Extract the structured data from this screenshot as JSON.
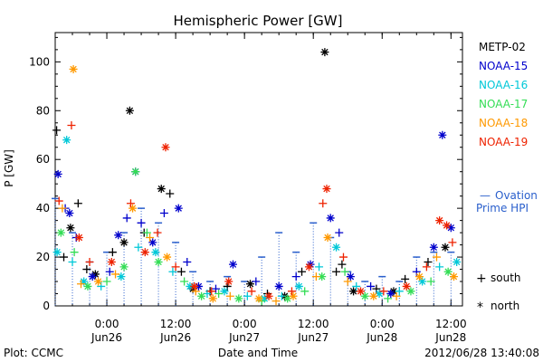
{
  "chart_data": {
    "type": "scatter",
    "title": "Hemispheric Power [GW]",
    "ylabel": "P [GW]",
    "xlabel": "Date and Time",
    "ylim": [
      0,
      112
    ],
    "yticks": [
      0,
      20,
      40,
      60,
      80,
      100
    ],
    "xlim": [
      "2012-06-25T15:00",
      "2012-06-28T14:00"
    ],
    "xticks": [
      {
        "time": "2012-06-26T00:00",
        "line1": "0:00",
        "line2": "Jun26"
      },
      {
        "time": "2012-06-26T12:00",
        "line1": "12:00",
        "line2": "Jun26"
      },
      {
        "time": "2012-06-27T00:00",
        "line1": "0:00",
        "line2": "Jun27"
      },
      {
        "time": "2012-06-27T12:00",
        "line1": "12:00",
        "line2": "Jun27"
      },
      {
        "time": "2012-06-28T00:00",
        "line1": "0:00",
        "line2": "Jun28"
      },
      {
        "time": "2012-06-28T12:00",
        "line1": "12:00",
        "line2": "Jun28"
      }
    ],
    "grid": false,
    "legend_position": "right",
    "series": [
      {
        "name": "METP-02",
        "color": "#000000",
        "points": [
          [
            "2012-06-25T15:15",
            72,
            "south"
          ],
          [
            "2012-06-25T16:30",
            20,
            "south"
          ],
          [
            "2012-06-25T17:40",
            32,
            "north"
          ],
          [
            "2012-06-25T19:00",
            42,
            "south"
          ],
          [
            "2012-06-25T20:30",
            15,
            "south"
          ],
          [
            "2012-06-25T22:00",
            13,
            "north"
          ],
          [
            "2012-06-26T01:00",
            22,
            "south"
          ],
          [
            "2012-06-26T03:00",
            26,
            "north"
          ],
          [
            "2012-06-26T04:00",
            80,
            "north"
          ],
          [
            "2012-06-26T06:30",
            30,
            "south"
          ],
          [
            "2012-06-26T09:30",
            48,
            "north"
          ],
          [
            "2012-06-26T11:00",
            46,
            "south"
          ],
          [
            "2012-06-26T13:00",
            14,
            "south"
          ],
          [
            "2012-06-26T15:00",
            7,
            "north"
          ],
          [
            "2012-06-26T18:00",
            6,
            "south"
          ],
          [
            "2012-06-26T21:00",
            8,
            "south"
          ],
          [
            "2012-06-27T01:00",
            9,
            "north"
          ],
          [
            "2012-06-27T04:00",
            5,
            "south"
          ],
          [
            "2012-06-27T07:00",
            4,
            "north"
          ],
          [
            "2012-06-27T10:00",
            14,
            "south"
          ],
          [
            "2012-06-27T14:00",
            104,
            "north"
          ],
          [
            "2012-06-27T16:00",
            14,
            "south"
          ],
          [
            "2012-06-27T17:00",
            17,
            "south"
          ],
          [
            "2012-06-27T19:00",
            6,
            "north"
          ],
          [
            "2012-06-27T23:00",
            7,
            "south"
          ],
          [
            "2012-06-28T02:00",
            6,
            "north"
          ],
          [
            "2012-06-28T04:00",
            11,
            "south"
          ],
          [
            "2012-06-28T08:00",
            18,
            "south"
          ],
          [
            "2012-06-28T11:00",
            24,
            "north"
          ]
        ]
      },
      {
        "name": "NOAA-15",
        "color": "#0000cc",
        "points": [
          [
            "2012-06-25T15:30",
            54,
            "north"
          ],
          [
            "2012-06-25T16:45",
            40,
            "south"
          ],
          [
            "2012-06-25T17:30",
            38,
            "north"
          ],
          [
            "2012-06-25T18:40",
            28,
            "south"
          ],
          [
            "2012-06-25T21:30",
            12,
            "north"
          ],
          [
            "2012-06-26T00:30",
            14,
            "south"
          ],
          [
            "2012-06-26T02:00",
            29,
            "north"
          ],
          [
            "2012-06-26T03:30",
            36,
            "south"
          ],
          [
            "2012-06-26T05:00",
            55,
            "north"
          ],
          [
            "2012-06-26T06:00",
            34,
            "south"
          ],
          [
            "2012-06-26T08:00",
            26,
            "north"
          ],
          [
            "2012-06-26T10:00",
            38,
            "south"
          ],
          [
            "2012-06-26T12:30",
            40,
            "north"
          ],
          [
            "2012-06-26T14:00",
            18,
            "south"
          ],
          [
            "2012-06-26T16:00",
            8,
            "north"
          ],
          [
            "2012-06-26T19:00",
            7,
            "south"
          ],
          [
            "2012-06-26T22:00",
            17,
            "north"
          ],
          [
            "2012-06-27T02:00",
            10,
            "south"
          ],
          [
            "2012-06-27T06:00",
            8,
            "north"
          ],
          [
            "2012-06-27T09:00",
            12,
            "south"
          ],
          [
            "2012-06-27T11:30",
            17,
            "north"
          ],
          [
            "2012-06-27T15:00",
            36,
            "north"
          ],
          [
            "2012-06-27T16:30",
            30,
            "south"
          ],
          [
            "2012-06-27T18:30",
            12,
            "north"
          ],
          [
            "2012-06-27T22:00",
            8,
            "south"
          ],
          [
            "2012-06-28T01:30",
            5,
            "north"
          ],
          [
            "2012-06-28T06:00",
            14,
            "south"
          ],
          [
            "2012-06-28T09:00",
            24,
            "north"
          ],
          [
            "2012-06-28T10:30",
            70,
            "north"
          ],
          [
            "2012-06-28T12:00",
            32,
            "north"
          ]
        ]
      },
      {
        "name": "NOAA-16",
        "color": "#00c8d8",
        "points": [
          [
            "2012-06-25T15:20",
            22,
            "north"
          ],
          [
            "2012-06-25T17:00",
            68,
            "north"
          ],
          [
            "2012-06-25T18:00",
            18,
            "south"
          ],
          [
            "2012-06-25T20:00",
            10,
            "north"
          ],
          [
            "2012-06-25T23:00",
            8,
            "south"
          ],
          [
            "2012-06-26T02:30",
            12,
            "north"
          ],
          [
            "2012-06-26T05:30",
            24,
            "south"
          ],
          [
            "2012-06-26T08:30",
            22,
            "north"
          ],
          [
            "2012-06-26T11:30",
            14,
            "south"
          ],
          [
            "2012-06-26T14:30",
            8,
            "north"
          ],
          [
            "2012-06-26T17:30",
            5,
            "south"
          ],
          [
            "2012-06-26T20:30",
            6,
            "north"
          ],
          [
            "2012-06-27T00:30",
            4,
            "south"
          ],
          [
            "2012-06-27T03:30",
            3,
            "north"
          ],
          [
            "2012-06-27T06:30",
            4,
            "south"
          ],
          [
            "2012-06-27T09:30",
            8,
            "north"
          ],
          [
            "2012-06-27T13:00",
            16,
            "south"
          ],
          [
            "2012-06-27T16:00",
            24,
            "north"
          ],
          [
            "2012-06-27T19:30",
            8,
            "south"
          ],
          [
            "2012-06-27T23:30",
            5,
            "north"
          ],
          [
            "2012-06-28T03:00",
            6,
            "south"
          ],
          [
            "2012-06-28T07:00",
            10,
            "north"
          ],
          [
            "2012-06-28T10:00",
            16,
            "south"
          ],
          [
            "2012-06-28T13:00",
            18,
            "north"
          ]
        ]
      },
      {
        "name": "NOAA-17",
        "color": "#33dd55",
        "points": [
          [
            "2012-06-25T16:00",
            30,
            "north"
          ],
          [
            "2012-06-25T18:20",
            22,
            "south"
          ],
          [
            "2012-06-25T20:40",
            8,
            "north"
          ],
          [
            "2012-06-26T00:00",
            10,
            "south"
          ],
          [
            "2012-06-26T03:00",
            16,
            "north"
          ],
          [
            "2012-06-26T05:00",
            55,
            "north"
          ],
          [
            "2012-06-26T07:00",
            30,
            "south"
          ],
          [
            "2012-06-26T09:00",
            18,
            "north"
          ],
          [
            "2012-06-26T13:30",
            10,
            "south"
          ],
          [
            "2012-06-26T16:30",
            4,
            "north"
          ],
          [
            "2012-06-26T19:30",
            5,
            "south"
          ],
          [
            "2012-06-26T23:00",
            3,
            "north"
          ],
          [
            "2012-06-27T03:00",
            2,
            "south"
          ],
          [
            "2012-06-27T07:30",
            3,
            "north"
          ],
          [
            "2012-06-27T10:30",
            6,
            "south"
          ],
          [
            "2012-06-27T13:30",
            12,
            "north"
          ],
          [
            "2012-06-27T17:30",
            14,
            "south"
          ],
          [
            "2012-06-27T21:00",
            4,
            "north"
          ],
          [
            "2012-06-28T01:00",
            3,
            "south"
          ],
          [
            "2012-06-28T05:00",
            6,
            "north"
          ],
          [
            "2012-06-28T08:30",
            10,
            "south"
          ],
          [
            "2012-06-28T11:30",
            14,
            "north"
          ]
        ]
      },
      {
        "name": "NOAA-18",
        "color": "#ff9900",
        "points": [
          [
            "2012-06-25T16:15",
            40,
            "south"
          ],
          [
            "2012-06-25T18:10",
            97,
            "north"
          ],
          [
            "2012-06-25T19:30",
            9,
            "south"
          ],
          [
            "2012-06-25T22:30",
            10,
            "north"
          ],
          [
            "2012-06-26T01:30",
            13,
            "south"
          ],
          [
            "2012-06-26T04:30",
            40,
            "north"
          ],
          [
            "2012-06-26T07:30",
            28,
            "south"
          ],
          [
            "2012-06-26T10:30",
            20,
            "north"
          ],
          [
            "2012-06-26T15:30",
            6,
            "south"
          ],
          [
            "2012-06-26T18:30",
            3,
            "north"
          ],
          [
            "2012-06-26T21:30",
            4,
            "south"
          ],
          [
            "2012-06-27T02:30",
            3,
            "north"
          ],
          [
            "2012-06-27T05:30",
            2,
            "south"
          ],
          [
            "2012-06-27T08:30",
            4,
            "north"
          ],
          [
            "2012-06-27T12:30",
            12,
            "south"
          ],
          [
            "2012-06-27T14:30",
            28,
            "north"
          ],
          [
            "2012-06-27T18:00",
            10,
            "south"
          ],
          [
            "2012-06-27T22:30",
            4,
            "north"
          ],
          [
            "2012-06-28T02:30",
            4,
            "south"
          ],
          [
            "2012-06-28T06:30",
            12,
            "north"
          ],
          [
            "2012-06-28T09:30",
            20,
            "south"
          ],
          [
            "2012-06-28T12:30",
            12,
            "north"
          ]
        ]
      },
      {
        "name": "NOAA-19",
        "color": "#ee2200",
        "points": [
          [
            "2012-06-25T15:40",
            43,
            "south"
          ],
          [
            "2012-06-25T17:50",
            74,
            "south"
          ],
          [
            "2012-06-25T19:10",
            28,
            "north"
          ],
          [
            "2012-06-25T21:00",
            18,
            "south"
          ],
          [
            "2012-06-26T00:50",
            18,
            "north"
          ],
          [
            "2012-06-26T04:10",
            42,
            "south"
          ],
          [
            "2012-06-26T06:40",
            22,
            "north"
          ],
          [
            "2012-06-26T08:50",
            30,
            "south"
          ],
          [
            "2012-06-26T10:15",
            65,
            "north"
          ],
          [
            "2012-06-26T12:00",
            16,
            "south"
          ],
          [
            "2012-06-26T15:15",
            8,
            "north"
          ],
          [
            "2012-06-26T18:15",
            6,
            "south"
          ],
          [
            "2012-06-26T21:15",
            10,
            "north"
          ],
          [
            "2012-06-27T01:15",
            6,
            "south"
          ],
          [
            "2012-06-27T04:15",
            4,
            "north"
          ],
          [
            "2012-06-27T08:15",
            6,
            "south"
          ],
          [
            "2012-06-27T11:15",
            16,
            "north"
          ],
          [
            "2012-06-27T13:40",
            42,
            "south"
          ],
          [
            "2012-06-27T14:20",
            48,
            "north"
          ],
          [
            "2012-06-27T17:15",
            20,
            "south"
          ],
          [
            "2012-06-27T20:15",
            6,
            "north"
          ],
          [
            "2012-06-28T00:15",
            6,
            "south"
          ],
          [
            "2012-06-28T04:15",
            8,
            "north"
          ],
          [
            "2012-06-28T07:45",
            16,
            "south"
          ],
          [
            "2012-06-28T10:00",
            35,
            "north"
          ],
          [
            "2012-06-28T11:15",
            33,
            "north"
          ],
          [
            "2012-06-28T12:15",
            26,
            "south"
          ]
        ]
      }
    ],
    "ovation": {
      "name_line1": "Ovation",
      "name_line2": "Prime HPI",
      "color": "#2a5fcc",
      "marker": "—",
      "values": [
        [
          "2012-06-25T15:00",
          44
        ],
        [
          "2012-06-25T18:00",
          30
        ],
        [
          "2012-06-25T21:00",
          18
        ],
        [
          "2012-06-26T00:00",
          22
        ],
        [
          "2012-06-26T03:00",
          30
        ],
        [
          "2012-06-26T06:00",
          40
        ],
        [
          "2012-06-26T09:00",
          34
        ],
        [
          "2012-06-26T12:00",
          26
        ],
        [
          "2012-06-26T15:00",
          14
        ],
        [
          "2012-06-26T18:00",
          10
        ],
        [
          "2012-06-26T21:00",
          12
        ],
        [
          "2012-06-27T00:00",
          10
        ],
        [
          "2012-06-27T03:00",
          20
        ],
        [
          "2012-06-27T06:00",
          30
        ],
        [
          "2012-06-27T09:00",
          22
        ],
        [
          "2012-06-27T12:00",
          34
        ],
        [
          "2012-06-27T15:00",
          28
        ],
        [
          "2012-06-27T18:00",
          14
        ],
        [
          "2012-06-27T21:00",
          10
        ],
        [
          "2012-06-28T00:00",
          12
        ],
        [
          "2012-06-28T03:00",
          10
        ],
        [
          "2012-06-28T06:00",
          20
        ],
        [
          "2012-06-28T09:00",
          22
        ],
        [
          "2012-06-28T12:00",
          22
        ]
      ]
    },
    "marker_key": {
      "south": {
        "symbol": "+",
        "label": "south"
      },
      "north": {
        "symbol": "*",
        "label": "north"
      }
    }
  },
  "footer": {
    "left": "Plot: CCMC",
    "center": "Date and Time",
    "right": "2012/06/28 13:40:08"
  }
}
